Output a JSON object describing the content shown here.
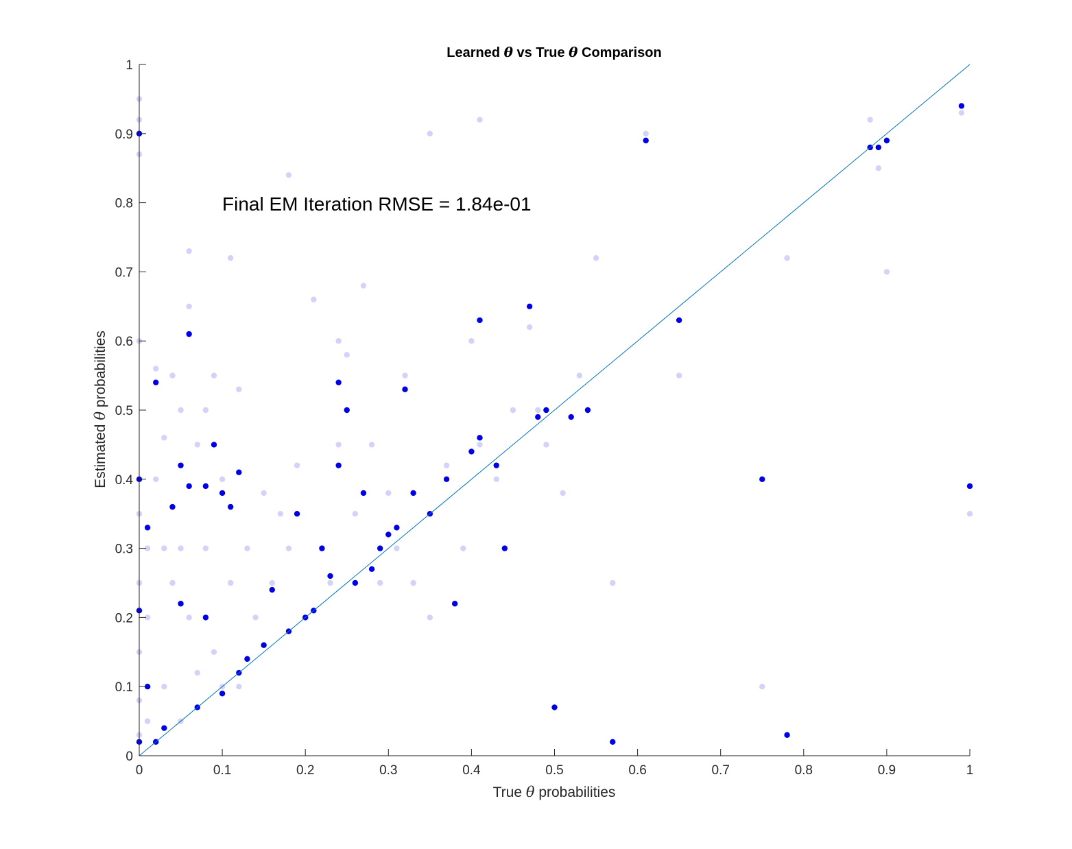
{
  "chart_data": {
    "type": "scatter",
    "title_parts": [
      "Learned ",
      "θ",
      " vs True ",
      "θ",
      " Comparison"
    ],
    "xlabel_parts": [
      "True ",
      "θ",
      " probabilities"
    ],
    "ylabel_parts": [
      "Estimated ",
      "θ",
      " probabilities"
    ],
    "xlim": [
      0,
      1
    ],
    "ylim": [
      0,
      1
    ],
    "xticks": [
      "0",
      "0.1",
      "0.2",
      "0.3",
      "0.4",
      "0.5",
      "0.6",
      "0.7",
      "0.8",
      "0.9",
      "1"
    ],
    "yticks": [
      "0",
      "0.1",
      "0.2",
      "0.3",
      "0.4",
      "0.5",
      "0.6",
      "0.7",
      "0.8",
      "0.9",
      "1"
    ],
    "annotation": "Final EM Iteration RMSE = 1.84e-01",
    "reference_line": {
      "x": [
        0,
        1
      ],
      "y": [
        0,
        1
      ],
      "color": "#0072BD"
    },
    "grid": false,
    "legend": "none",
    "series": [
      {
        "role": "earlier EM iterations",
        "color": "#8080f0",
        "x": [
          0,
          0,
          0,
          0,
          0,
          0,
          0,
          0,
          0,
          0.01,
          0.01,
          0.01,
          0.02,
          0.02,
          0.02,
          0.03,
          0.03,
          0.03,
          0.04,
          0.04,
          0.05,
          0.05,
          0.05,
          0.06,
          0.06,
          0.06,
          0.07,
          0.07,
          0.08,
          0.08,
          0.09,
          0.09,
          0.1,
          0.1,
          0.11,
          0.11,
          0.12,
          0.12,
          0.13,
          0.14,
          0.15,
          0.16,
          0.17,
          0.18,
          0.18,
          0.19,
          0.2,
          0.21,
          0.22,
          0.23,
          0.24,
          0.24,
          0.25,
          0.26,
          0.27,
          0.28,
          0.29,
          0.3,
          0.31,
          0.32,
          0.33,
          0.35,
          0.35,
          0.37,
          0.39,
          0.4,
          0.41,
          0.41,
          0.43,
          0.45,
          0.47,
          0.48,
          0.49,
          0.51,
          0.53,
          0.55,
          0.57,
          0.61,
          0.65,
          0.75,
          0.78,
          0.88,
          0.89,
          0.9,
          0.99,
          1
        ],
        "y": [
          0.95,
          0.92,
          0.87,
          0.6,
          0.35,
          0.25,
          0.15,
          0.08,
          0.03,
          0.3,
          0.2,
          0.05,
          0.56,
          0.4,
          0.02,
          0.46,
          0.3,
          0.1,
          0.55,
          0.25,
          0.5,
          0.3,
          0.05,
          0.73,
          0.65,
          0.2,
          0.45,
          0.12,
          0.5,
          0.3,
          0.55,
          0.15,
          0.4,
          0.1,
          0.72,
          0.25,
          0.53,
          0.1,
          0.3,
          0.2,
          0.38,
          0.25,
          0.35,
          0.84,
          0.3,
          0.42,
          0.2,
          0.66,
          0.3,
          0.25,
          0.6,
          0.45,
          0.58,
          0.35,
          0.68,
          0.45,
          0.25,
          0.38,
          0.3,
          0.55,
          0.25,
          0.9,
          0.2,
          0.42,
          0.3,
          0.6,
          0.92,
          0.45,
          0.4,
          0.5,
          0.62,
          0.5,
          0.45,
          0.38,
          0.55,
          0.72,
          0.25,
          0.9,
          0.55,
          0.1,
          0.72,
          0.92,
          0.85,
          0.7,
          0.93,
          0.35
        ]
      },
      {
        "role": "final EM iteration",
        "color": "#0000e6",
        "x": [
          0,
          0,
          0,
          0,
          0.01,
          0.01,
          0.02,
          0.02,
          0.03,
          0.04,
          0.05,
          0.05,
          0.06,
          0.06,
          0.07,
          0.08,
          0.08,
          0.09,
          0.1,
          0.1,
          0.11,
          0.12,
          0.12,
          0.13,
          0.15,
          0.16,
          0.18,
          0.19,
          0.2,
          0.21,
          0.22,
          0.23,
          0.24,
          0.24,
          0.25,
          0.26,
          0.27,
          0.28,
          0.29,
          0.3,
          0.31,
          0.32,
          0.33,
          0.35,
          0.37,
          0.38,
          0.4,
          0.41,
          0.41,
          0.43,
          0.44,
          0.47,
          0.48,
          0.49,
          0.5,
          0.52,
          0.54,
          0.57,
          0.61,
          0.65,
          0.75,
          0.78,
          0.88,
          0.89,
          0.9,
          0.99,
          1
        ],
        "y": [
          0.9,
          0.4,
          0.21,
          0.02,
          0.33,
          0.1,
          0.54,
          0.02,
          0.04,
          0.36,
          0.42,
          0.22,
          0.61,
          0.39,
          0.07,
          0.39,
          0.2,
          0.45,
          0.38,
          0.09,
          0.36,
          0.41,
          0.12,
          0.14,
          0.16,
          0.24,
          0.18,
          0.35,
          0.2,
          0.21,
          0.3,
          0.26,
          0.54,
          0.42,
          0.5,
          0.25,
          0.38,
          0.27,
          0.3,
          0.32,
          0.33,
          0.53,
          0.38,
          0.35,
          0.4,
          0.22,
          0.44,
          0.63,
          0.46,
          0.42,
          0.3,
          0.65,
          0.49,
          0.5,
          0.07,
          0.49,
          0.5,
          0.02,
          0.89,
          0.63,
          0.4,
          0.03,
          0.88,
          0.88,
          0.89,
          0.94,
          0.39
        ]
      }
    ]
  }
}
